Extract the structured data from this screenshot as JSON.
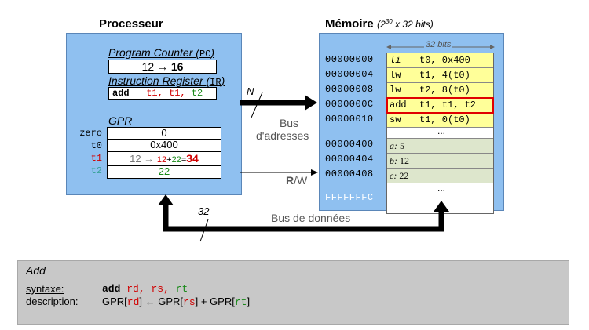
{
  "processor": {
    "title": "Processeur",
    "pc": {
      "label": "Program Counter (",
      "abbr": "PC",
      "close": ")",
      "old": "12",
      "arrow": "→",
      "new": "16"
    },
    "ir": {
      "label": "Instruction Register (",
      "abbr": "IR",
      "close": ")",
      "op": "add",
      "rd": "t1,",
      "rs": "t1,",
      "rt": "t2"
    },
    "gpr": {
      "label": "GPR",
      "registers": [
        {
          "name": "zero",
          "value": "0"
        },
        {
          "name": "t0",
          "value": "0x400"
        },
        {
          "name": "t1",
          "old": "12",
          "arrow": "→",
          "a": "12",
          "plus": "+",
          "b": "22",
          "eq": "=",
          "result": "34"
        },
        {
          "name": "t2",
          "value": "22"
        }
      ]
    }
  },
  "memory": {
    "title": "Mémoire",
    "subtitle_pre": "(2",
    "subtitle_exp": "30",
    "subtitle_post": " x 32 bits)",
    "width_label": "32 bits",
    "rows": [
      {
        "addr": "00000000",
        "op": "li",
        "args": "t0, 0x400"
      },
      {
        "addr": "00000004",
        "op": "lw",
        "args": "t1, 4(t0)"
      },
      {
        "addr": "00000008",
        "op": "lw",
        "args": "t2, 8(t0)"
      },
      {
        "addr": "0000000C",
        "op": "add",
        "args": "t1, t1, t2"
      },
      {
        "addr": "00000010",
        "op": "sw",
        "args": "t1, 0(t0)"
      },
      {
        "addr": "",
        "op": "",
        "args": "..."
      },
      {
        "addr": "00000400",
        "op": "a:",
        "args": "5"
      },
      {
        "addr": "00000404",
        "op": "b:",
        "args": "12"
      },
      {
        "addr": "00000408",
        "op": "c:",
        "args": "22"
      },
      {
        "addr": "",
        "op": "",
        "args": "..."
      },
      {
        "addr": "FFFFFFFC",
        "op": "",
        "args": ""
      }
    ]
  },
  "buses": {
    "address_width": "N",
    "address_label_1": "Bus",
    "address_label_2": "d'adresses",
    "rw_r": "R",
    "rw_w": "/W",
    "data_width": "32",
    "data_label": "Bus de données"
  },
  "info": {
    "title": "Add",
    "syntax_label": "syntaxe:",
    "syntax_op": "add",
    "syntax_rd": "rd,",
    "syntax_rs": "rs,",
    "syntax_rt": "rt",
    "desc_label": "description:",
    "desc_1": "GPR[",
    "desc_rd": "rd",
    "desc_2": "] ← GPR[",
    "desc_rs": "rs",
    "desc_3": "] + GPR[",
    "desc_rt": "rt",
    "desc_4": "]"
  },
  "colors": {
    "box": "#8fc0f0",
    "highlight": "#e00000",
    "code_bg": "#ffff99",
    "data_bg": "#dde6cc",
    "panel": "#c8c8c8"
  }
}
